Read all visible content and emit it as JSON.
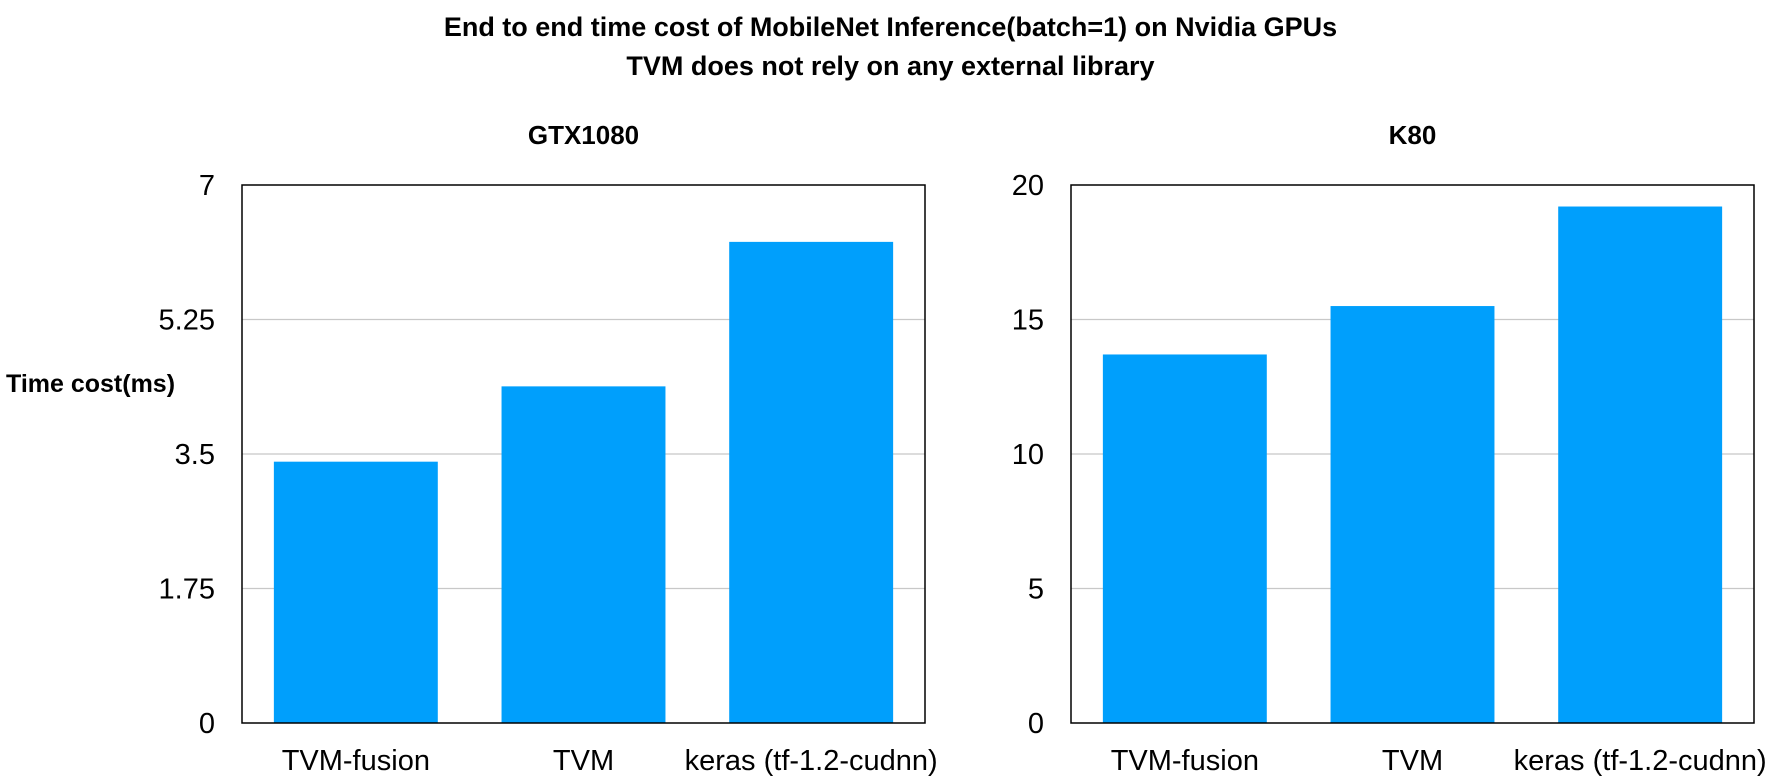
{
  "figure": {
    "title_line1": "End to end time cost of MobileNet Inference(batch=1) on Nvidia GPUs",
    "title_line2": "TVM does not rely on any external  library"
  },
  "colors": {
    "bar": "#009ffc",
    "grid": "#c8c8c8",
    "axis": "#000000"
  },
  "chart_data": [
    {
      "type": "bar",
      "title": "GTX1080",
      "ylabel": "Time cost(ms)",
      "xlabel": "",
      "categories": [
        "TVM-fusion",
        "TVM",
        "keras (tf-1.2-cudnn)"
      ],
      "values": [
        3.4,
        4.38,
        6.26
      ],
      "ylim": [
        0,
        7
      ],
      "yticks": [
        0,
        1.75,
        3.5,
        5.25,
        7
      ],
      "ytick_labels": [
        "0",
        "1.75",
        "3.5",
        "5.25",
        "7"
      ],
      "grid": true
    },
    {
      "type": "bar",
      "title": "K80",
      "ylabel": "",
      "xlabel": "",
      "categories": [
        "TVM-fusion",
        "TVM",
        "keras (tf-1.2-cudnn)"
      ],
      "values": [
        13.7,
        15.5,
        19.2
      ],
      "ylim": [
        0,
        20
      ],
      "yticks": [
        0,
        5,
        10,
        15,
        20
      ],
      "ytick_labels": [
        "0",
        "5",
        "10",
        "15",
        "20"
      ],
      "grid": true
    }
  ]
}
